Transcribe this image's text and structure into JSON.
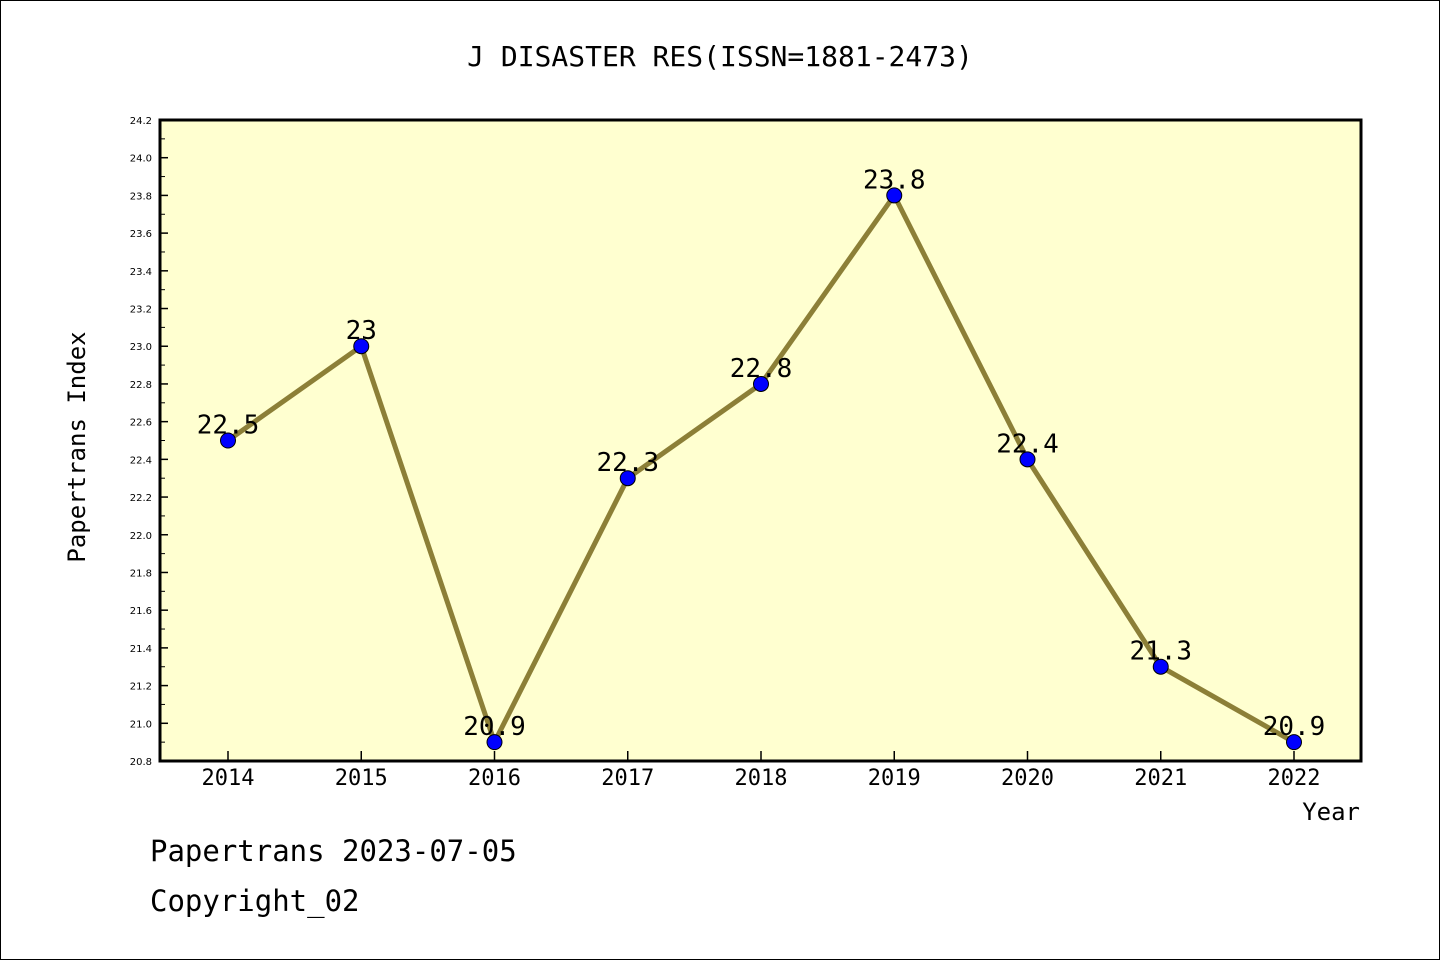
{
  "chart_data": {
    "type": "line",
    "title": "J DISASTER RES(ISSN=1881-2473)",
    "xlabel": "Year",
    "ylabel": "Papertrans Index",
    "categories": [
      "2014",
      "2015",
      "2016",
      "2017",
      "2018",
      "2019",
      "2020",
      "2021",
      "2022"
    ],
    "values": [
      22.5,
      23,
      20.9,
      22.3,
      22.8,
      23.8,
      22.4,
      21.3,
      20.9
    ],
    "value_labels": [
      "22.5",
      "23",
      "20.9",
      "22.3",
      "22.8",
      "23.8",
      "22.4",
      "21.3",
      "20.9"
    ],
    "ylim": [
      20.8,
      24.2
    ],
    "yticks": [
      "20.8",
      "21.0",
      "21.2",
      "21.4",
      "21.6",
      "21.8",
      "22.0",
      "22.2",
      "22.4",
      "22.6",
      "22.8",
      "23.0",
      "23.2",
      "23.4",
      "23.6",
      "23.8",
      "24.0",
      "24.2"
    ],
    "grid": false,
    "colors": {
      "plot_background": "#ffffd0",
      "line": "#8c7f37",
      "marker": "#0000ff"
    }
  },
  "footer": {
    "line1": "Papertrans 2023-07-05",
    "line2": "Copyright_02"
  }
}
